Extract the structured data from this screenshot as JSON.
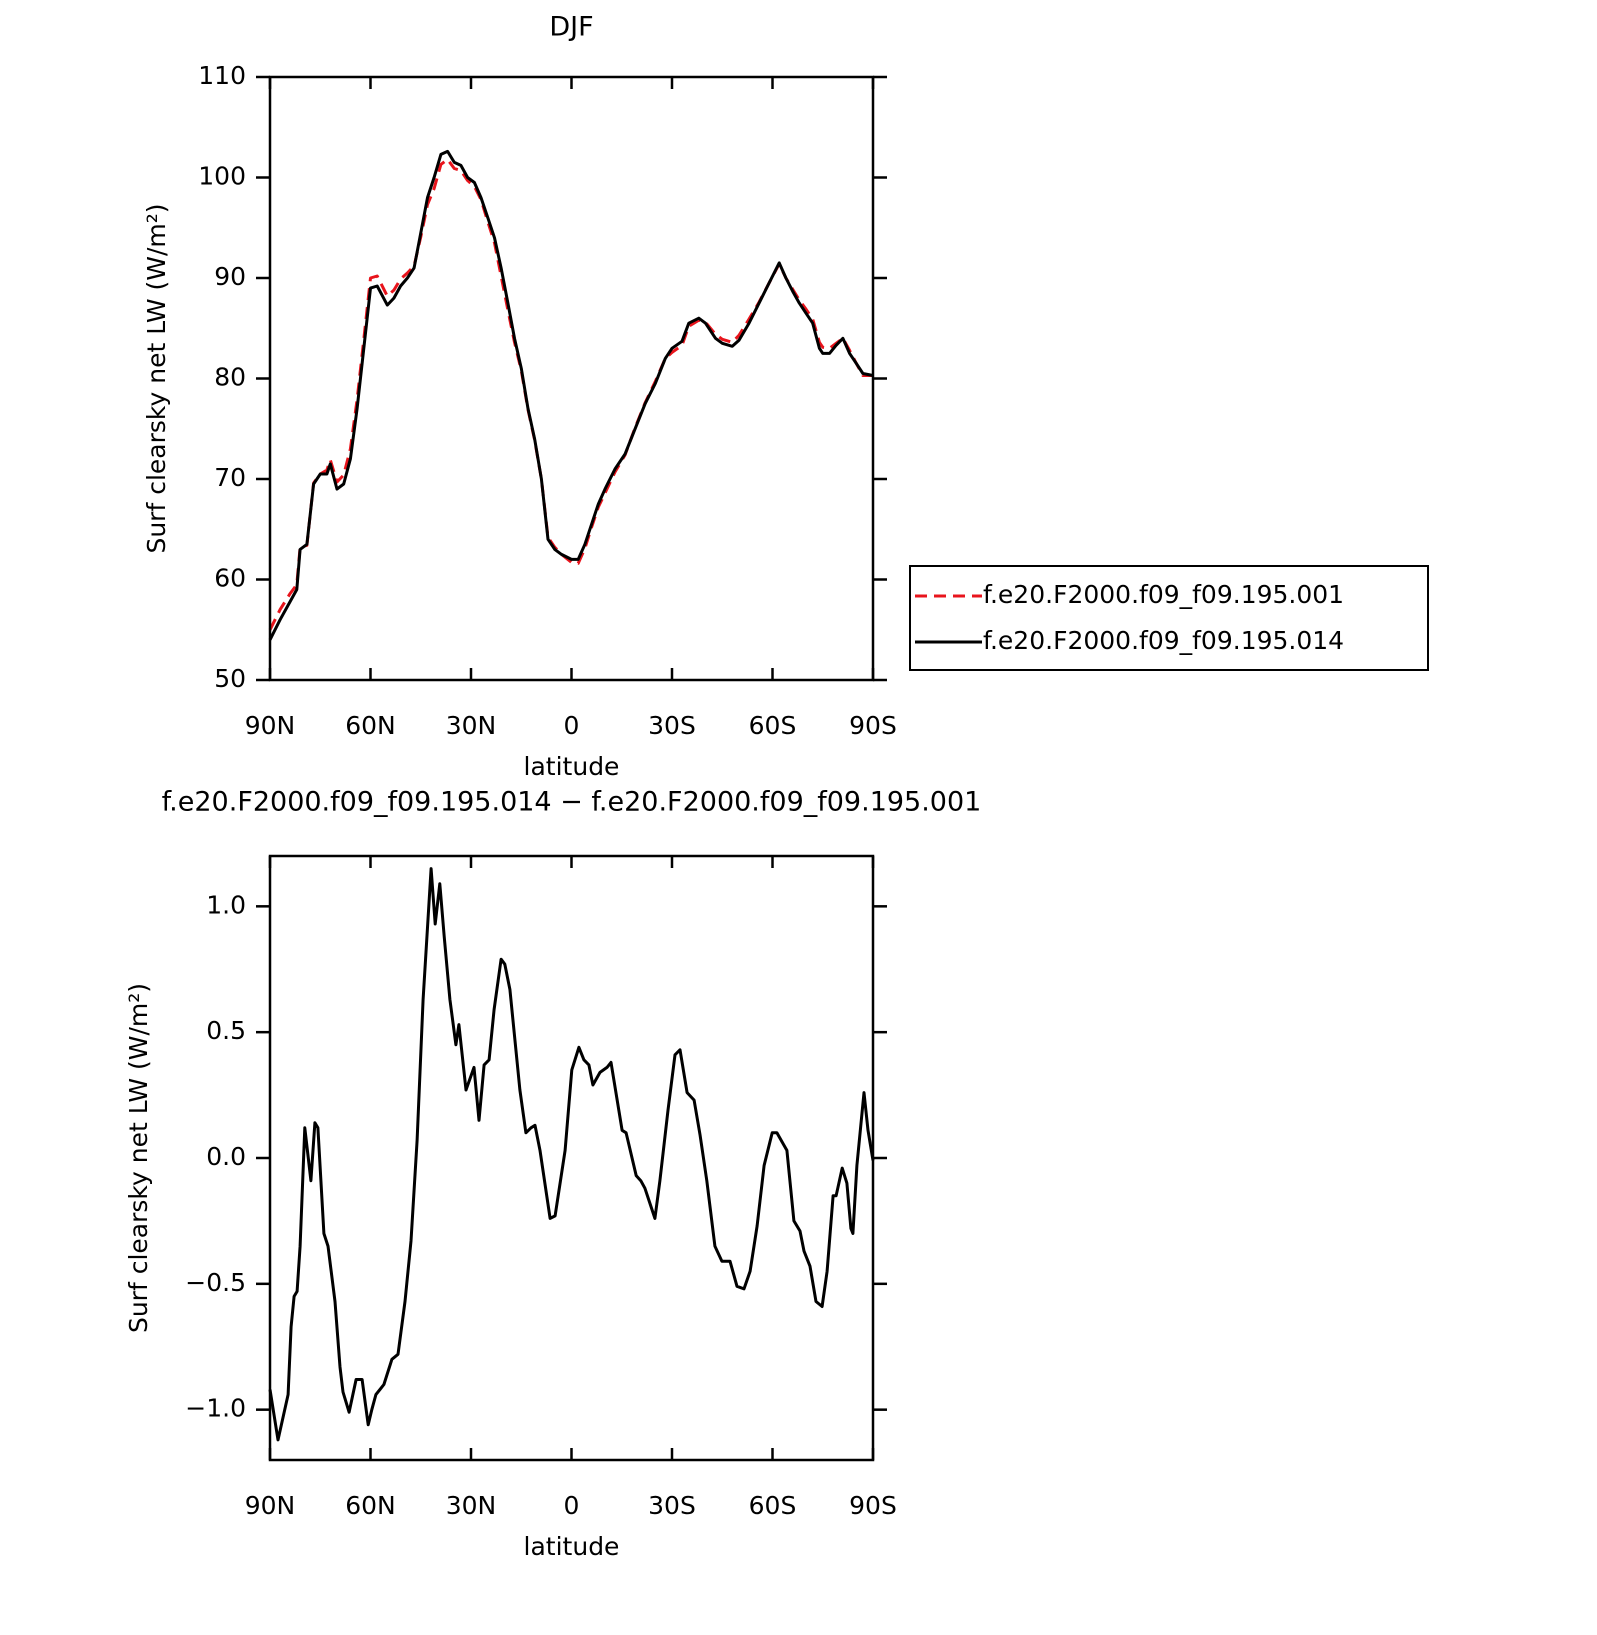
{
  "chart_data": [
    {
      "type": "line",
      "title": "DJF",
      "x_label": "latitude",
      "y_label": "Surf clearsky net LW (W/m²)",
      "x": [
        90,
        87,
        84,
        82,
        81,
        79,
        77,
        75,
        73,
        72,
        70,
        68,
        66,
        64,
        62,
        60,
        58,
        55,
        53,
        51,
        49,
        47,
        45,
        43,
        41,
        39,
        37,
        35,
        33,
        31,
        29,
        27,
        25,
        23,
        21,
        19,
        17,
        15,
        13,
        11,
        9,
        7,
        5,
        3,
        0,
        -2,
        -4,
        -6,
        -8,
        -10,
        -13,
        -16,
        -19,
        -22,
        -25,
        -28,
        -30,
        -33,
        -35,
        -38,
        -40,
        -43,
        -45,
        -48,
        -50,
        -53,
        -56,
        -59,
        -62,
        -64,
        -66,
        -68,
        -70,
        -72,
        -74,
        -75,
        -77,
        -79,
        -81,
        -83,
        -85,
        -87,
        -90
      ],
      "series": [
        {
          "name": "f.e20.F2000.f09_f09.195.001",
          "color": "#e8141c",
          "style": "dashed",
          "values": [
            55,
            57,
            58.6,
            59.5,
            63.2,
            63.4,
            69.6,
            70.5,
            70.9,
            71.9,
            69.7,
            70.4,
            73,
            77.9,
            83.9,
            90,
            90.2,
            88.2,
            88.8,
            89.9,
            90.5,
            91.2,
            94.1,
            97.3,
            98.9,
            101.3,
            101.8,
            100.9,
            100.7,
            99.7,
            99.1,
            97.8,
            95.6,
            93.5,
            90.2,
            86.8,
            83.6,
            80.8,
            76.9,
            73.9,
            70,
            64.2,
            63.2,
            62.5,
            61.7,
            61.6,
            63.1,
            65.2,
            67.2,
            68.6,
            70.7,
            72.4,
            75.1,
            77.6,
            79.7,
            82,
            82.6,
            83.3,
            85.2,
            85.8,
            85.6,
            84.4,
            83.9,
            83.6,
            84.3,
            85.9,
            87.6,
            89.5,
            91.4,
            90,
            88.9,
            87.8,
            86.9,
            85.9,
            83.6,
            83.1,
            83,
            83.5,
            84,
            82.8,
            81.5,
            80.3,
            80.3
          ]
        },
        {
          "name": "f.e20.F2000.f09_f09.195.014",
          "color": "#000000",
          "style": "solid",
          "values": [
            54,
            56,
            57.8,
            59,
            63,
            63.5,
            69.5,
            70.5,
            70.5,
            71.5,
            69,
            69.5,
            72,
            77,
            83,
            89,
            89.2,
            87.3,
            88,
            89.2,
            90,
            91,
            94.5,
            98,
            100,
            102.3,
            102.6,
            101.5,
            101.2,
            100,
            99.5,
            98,
            96,
            94,
            91,
            87.5,
            84,
            81,
            77,
            74,
            70,
            64,
            63,
            62.5,
            62,
            62,
            63.5,
            65.5,
            67.5,
            69,
            71,
            72.5,
            75,
            77.5,
            79.5,
            82,
            83,
            83.7,
            85.5,
            86,
            85.5,
            84,
            83.5,
            83.2,
            83.8,
            85.5,
            87.5,
            89.5,
            91.5,
            90,
            88.7,
            87.5,
            86.5,
            85.5,
            83,
            82.5,
            82.5,
            83.3,
            84,
            82.5,
            81.5,
            80.5,
            80.3
          ]
        }
      ],
      "xlim": [
        90,
        -90
      ],
      "xticks": [
        {
          "value": 90,
          "label": "90N"
        },
        {
          "value": 60,
          "label": "60N"
        },
        {
          "value": 30,
          "label": "30N"
        },
        0,
        {
          "value": -30,
          "label": "30S"
        },
        {
          "value": -60,
          "label": "60S"
        },
        {
          "value": -90,
          "label": "90S"
        }
      ],
      "ylim": [
        50,
        110
      ],
      "yticks": [
        50,
        60,
        70,
        80,
        90,
        100,
        110
      ],
      "legend": "right"
    },
    {
      "type": "line",
      "title": "f.e20.F2000.f09_f09.195.014 − f.e20.F2000.f09_f09.195.001",
      "x_label": "latitude",
      "y_label": "Surf clearsky net LW (W/m²)",
      "x": [
        90,
        87.6,
        84.6,
        83.7,
        82.8,
        81.9,
        81,
        79.6,
        77.8,
        76.6,
        75.7,
        73.9,
        72.7,
        70.6,
        69.1,
        68.2,
        66.4,
        64.3,
        62.5,
        60.7,
        59.6,
        58.4,
        56,
        53.6,
        51.8,
        49.7,
        47.9,
        46.1,
        44.3,
        41.9,
        40.7,
        39.3,
        38,
        36.3,
        34.5,
        33.6,
        31.5,
        29.1,
        27.6,
        26.1,
        24.6,
        23.1,
        21,
        19.9,
        18.4,
        15.4,
        13.6,
        12.1,
        10.9,
        9.4,
        6.4,
        4.9,
        1.9,
        -0.1,
        -2.2,
        -3.7,
        -5.2,
        -6.4,
        -8.5,
        -10.6,
        -11.8,
        -15.1,
        -16.3,
        -19.3,
        -20.7,
        -21.9,
        -24.9,
        -26.4,
        -28.8,
        -30.9,
        -32.4,
        -34.5,
        -36.6,
        -38.4,
        -40.4,
        -42.8,
        -44.9,
        -47.3,
        -49.4,
        -51.5,
        -53.3,
        -55.4,
        -57.5,
        -59.9,
        -61.3,
        -64.3,
        -66.4,
        -68.2,
        -69.4,
        -71.2,
        -73,
        -74.8,
        -76.3,
        -78.1,
        -79,
        -80.8,
        -82.2,
        -83.4,
        -84,
        -85.2,
        -87.3,
        -88.5,
        -90
      ],
      "series": [
        {
          "color": "#000000",
          "style": "solid",
          "values": [
            -0.92,
            -1.12,
            -0.94,
            -0.67,
            -0.55,
            -0.53,
            -0.35,
            0.12,
            -0.09,
            0.14,
            0.12,
            -0.3,
            -0.35,
            -0.57,
            -0.83,
            -0.93,
            -1.01,
            -0.88,
            -0.88,
            -1.06,
            -1,
            -0.94,
            -0.9,
            -0.8,
            -0.78,
            -0.57,
            -0.33,
            0.07,
            0.63,
            1.15,
            0.93,
            1.09,
            0.88,
            0.63,
            0.45,
            0.53,
            0.27,
            0.36,
            0.15,
            0.37,
            0.39,
            0.59,
            0.79,
            0.77,
            0.67,
            0.27,
            0.1,
            0.12,
            0.13,
            0.03,
            -0.24,
            -0.23,
            0.03,
            0.35,
            0.44,
            0.39,
            0.37,
            0.29,
            0.34,
            0.36,
            0.38,
            0.11,
            0.1,
            -0.07,
            -0.09,
            -0.12,
            -0.24,
            -0.09,
            0.19,
            0.41,
            0.43,
            0.26,
            0.23,
            0.09,
            -0.09,
            -0.35,
            -0.41,
            -0.41,
            -0.51,
            -0.52,
            -0.45,
            -0.27,
            -0.03,
            0.1,
            0.1,
            0.03,
            -0.25,
            -0.29,
            -0.37,
            -0.43,
            -0.57,
            -0.59,
            -0.45,
            -0.15,
            -0.15,
            -0.04,
            -0.1,
            -0.28,
            -0.3,
            -0.03,
            0.26,
            0.11,
            -0.01
          ]
        }
      ],
      "xlim": [
        90,
        -90
      ],
      "xticks": [
        {
          "value": 90,
          "label": "90N"
        },
        {
          "value": 60,
          "label": "60N"
        },
        {
          "value": 30,
          "label": "30N"
        },
        0,
        {
          "value": -30,
          "label": "30S"
        },
        {
          "value": -60,
          "label": "60S"
        },
        {
          "value": -90,
          "label": "90S"
        }
      ],
      "ylim": [
        -1.2,
        1.2
      ],
      "yticks": [
        {
          "value": -1,
          "label": "−1.0"
        },
        {
          "value": -0.5,
          "label": "−0.5"
        },
        {
          "value": 0,
          "label": "0.0"
        },
        0.5,
        {
          "value": 1,
          "label": "1.0"
        }
      ]
    }
  ]
}
